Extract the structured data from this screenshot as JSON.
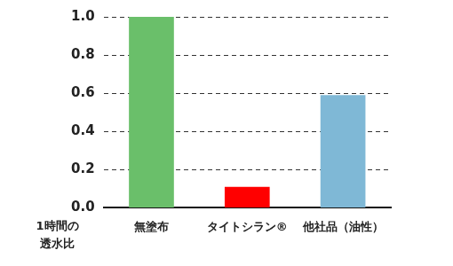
{
  "chart_data": {
    "type": "bar",
    "categories": [
      "無塗布",
      "タイトシラン®",
      "他社品（油性）"
    ],
    "values": [
      1.0,
      0.11,
      0.59
    ],
    "colors": [
      "#6abf6a",
      "#ff0000",
      "#7fb8d6"
    ],
    "ylim": [
      0,
      1
    ],
    "yticks": [
      {
        "value": 0,
        "label": "0.0"
      },
      {
        "value": 0.2,
        "label": "0.2"
      },
      {
        "value": 0.4,
        "label": "0.4"
      },
      {
        "value": 0.6,
        "label": "0.6"
      },
      {
        "value": 0.8,
        "label": "0.8"
      },
      {
        "value": 1,
        "label": "1.0"
      }
    ],
    "grid": true,
    "y_label": [
      "1時間の",
      "透水比"
    ]
  }
}
